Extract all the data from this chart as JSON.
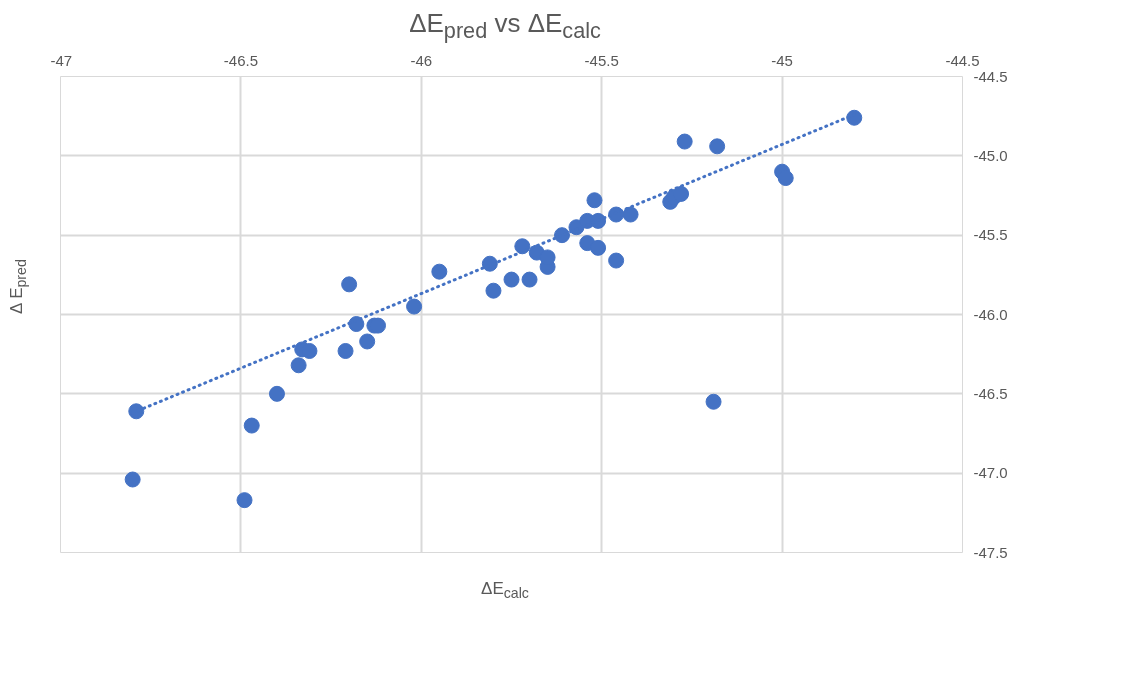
{
  "chart_data": {
    "type": "scatter",
    "title": "ΔE$_{pred}$ vs ΔE$_{calc}$",
    "xlabel": "ΔE$_{calc}$",
    "ylabel": "Δ E$_{pred}$",
    "xlim": [
      -47,
      -44.5
    ],
    "xticks": [
      -47,
      -46.5,
      -46,
      -45.5,
      -45,
      -44.5
    ],
    "ylim": [
      -47.5,
      -44.5
    ],
    "yticks": [
      {
        "value": -47.5,
        "label": "-47.5"
      },
      {
        "value": -47,
        "label": "-47.0"
      },
      {
        "value": -46.5,
        "label": "-46.5"
      },
      {
        "value": -46,
        "label": "-46.0"
      },
      {
        "value": -45.5,
        "label": "-45.5"
      },
      {
        "value": -45,
        "label": "-45.0"
      },
      {
        "value": -44.5,
        "label": "-44.5"
      }
    ],
    "grid": true,
    "series": [
      {
        "marker": "circle",
        "color": "#4472c4",
        "x": [
          -46.79,
          -46.8,
          -46.49,
          -46.47,
          -46.4,
          -46.34,
          -46.33,
          -46.31,
          -46.21,
          -46.2,
          -46.18,
          -46.15,
          -46.13,
          -46.12,
          -46.02,
          -45.95,
          -45.81,
          -45.8,
          -45.75,
          -45.72,
          -45.7,
          -45.68,
          -45.65,
          -45.65,
          -45.61,
          -45.57,
          -45.54,
          -45.54,
          -45.52,
          -45.51,
          -45.51,
          -45.46,
          -45.46,
          -45.42,
          -45.31,
          -45.3,
          -45.28,
          -45.27,
          -45.18,
          -45.19,
          -45.0,
          -44.99,
          -44.8
        ],
        "values": [
          -46.61,
          -47.04,
          -47.17,
          -46.7,
          -46.5,
          -46.32,
          -46.22,
          -46.23,
          -46.23,
          -45.81,
          -46.06,
          -46.17,
          -46.07,
          -46.07,
          -45.95,
          -45.73,
          -45.68,
          -45.85,
          -45.78,
          -45.57,
          -45.78,
          -45.61,
          -45.7,
          -45.64,
          -45.5,
          -45.45,
          -45.41,
          -45.55,
          -45.28,
          -45.58,
          -45.41,
          -45.66,
          -45.37,
          -45.37,
          -45.29,
          -45.26,
          -45.24,
          -44.91,
          -44.94,
          -46.55,
          -45.1,
          -45.14,
          -44.76
        ]
      },
      {
        "type": "line",
        "line_style": "dotted",
        "color": "#4472c4",
        "x": [
          -46.8,
          -44.8
        ],
        "values": [
          -46.62,
          -44.74
        ]
      }
    ]
  }
}
